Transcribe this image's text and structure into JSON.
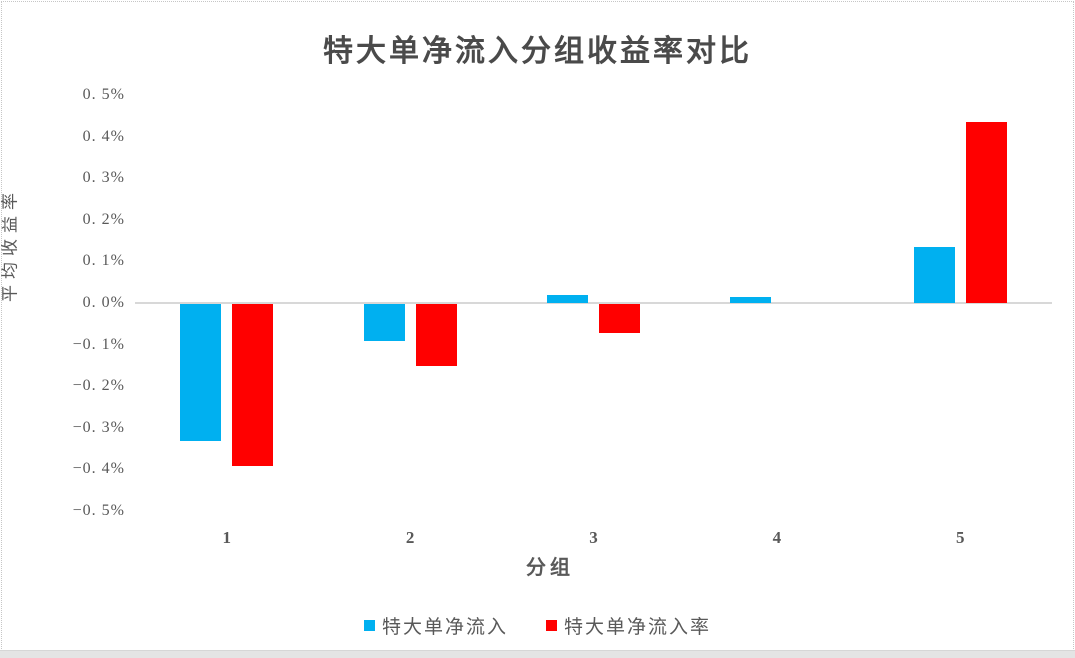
{
  "chart_data": {
    "type": "bar",
    "title": "特大单净流入分组收益率对比",
    "xlabel": "分组",
    "ylabel": "平均收益率",
    "categories": [
      "1",
      "2",
      "3",
      "4",
      "5"
    ],
    "series": [
      {
        "name": "特大单净流入",
        "color": "#00B0F0",
        "values": [
          -0.33,
          -0.09,
          0.02,
          0.015,
          0.135
        ]
      },
      {
        "name": "特大单净流入率",
        "color": "#FF0000",
        "values": [
          -0.39,
          -0.15,
          -0.07,
          0.0,
          0.435
        ]
      }
    ],
    "value_unit": "%",
    "ylim": [
      -0.5,
      0.5
    ],
    "ytick_step": 0.1,
    "ytick_labels": [
      "0. 5%",
      "0. 4%",
      "0. 3%",
      "0. 2%",
      "0. 1%",
      "0. 0%",
      "−0. 1%",
      "−0. 2%",
      "−0. 3%",
      "−0. 4%",
      "−0. 5%"
    ],
    "grid": false,
    "legend_position": "bottom",
    "zero_line_color": "#d8d8d8",
    "text_color": "#595959"
  }
}
